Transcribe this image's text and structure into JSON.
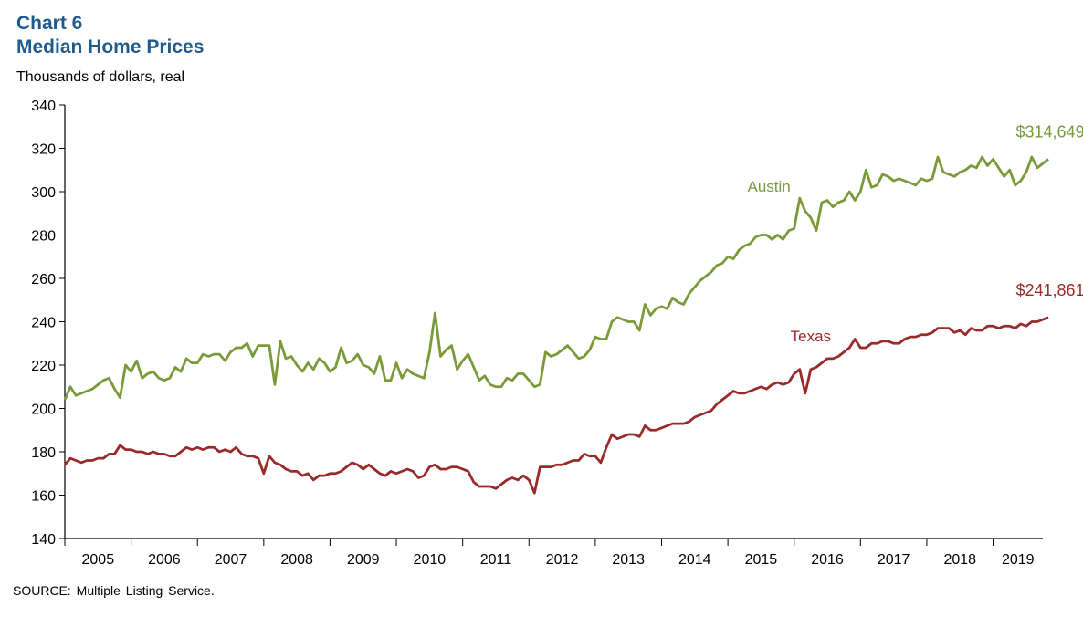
{
  "chart_data": {
    "type": "line",
    "chart_number": "Chart 6",
    "title": "Median Home Prices",
    "ylabel": "Thousands of dollars, real",
    "source": "SOURCE:  Multiple  Listing Service.",
    "ylim": [
      140,
      340
    ],
    "yticks": [
      140,
      160,
      180,
      200,
      220,
      240,
      260,
      280,
      300,
      320,
      340
    ],
    "xlim": [
      2005.0,
      2019.75
    ],
    "xticks": [
      "2005",
      "2006",
      "2007",
      "2008",
      "2009",
      "2010",
      "2011",
      "2012",
      "2013",
      "2014",
      "2015",
      "2016",
      "2017",
      "2018",
      "2019"
    ],
    "grid": false,
    "legend": "none (series labeled directly on chart)",
    "series": [
      {
        "name": "Austin",
        "color": "#7a9a3a",
        "end_label": "$314,649",
        "start": "2005-01",
        "frequency": "monthly",
        "values": [
          204,
          210,
          206,
          207,
          208,
          209,
          211,
          213,
          214,
          209,
          205,
          220,
          217,
          222,
          214,
          216,
          217,
          214,
          213,
          214,
          219,
          217,
          223,
          221,
          221,
          225,
          224,
          225,
          225,
          222,
          226,
          228,
          228,
          230,
          224,
          229,
          229,
          229,
          211,
          231,
          223,
          224,
          220,
          217,
          221,
          218,
          223,
          221,
          217,
          219,
          228,
          221,
          222,
          225,
          220,
          219,
          216,
          224,
          213,
          213,
          221,
          214,
          218,
          216,
          215,
          214,
          226,
          244,
          224,
          227,
          229,
          218,
          222,
          225,
          219,
          213,
          215,
          211,
          210,
          210,
          214,
          213,
          216,
          216,
          213,
          210,
          211,
          226,
          224,
          225,
          227,
          229,
          226,
          223,
          224,
          227,
          233,
          232,
          232,
          240,
          242,
          241,
          240,
          240,
          236,
          248,
          243,
          246,
          247,
          246,
          251,
          249,
          248,
          253,
          256,
          259,
          261,
          263,
          266,
          267,
          270,
          269,
          273,
          275,
          276,
          279,
          280,
          280,
          278,
          280,
          278,
          282,
          283,
          297,
          291,
          288,
          282,
          295,
          296,
          293,
          295,
          296,
          300,
          296,
          300,
          310,
          302,
          303,
          308,
          307,
          305,
          306,
          305,
          304,
          303,
          306,
          305,
          306,
          316,
          309,
          308,
          307,
          309,
          310,
          312,
          311,
          316,
          312,
          315,
          311,
          307,
          310,
          303,
          305,
          309,
          316,
          311,
          313,
          315
        ]
      },
      {
        "name": "Texas",
        "color": "#9a2a2a",
        "end_label": "$241,861",
        "start": "2005-01",
        "frequency": "monthly",
        "values": [
          174,
          177,
          176,
          175,
          176,
          176,
          177,
          177,
          179,
          179,
          183,
          181,
          181,
          180,
          180,
          179,
          180,
          179,
          179,
          178,
          178,
          180,
          182,
          181,
          182,
          181,
          182,
          182,
          180,
          181,
          180,
          182,
          179,
          178,
          178,
          177,
          170,
          178,
          175,
          174,
          172,
          171,
          171,
          169,
          170,
          167,
          169,
          169,
          170,
          170,
          171,
          173,
          175,
          174,
          172,
          174,
          172,
          170,
          169,
          171,
          170,
          171,
          172,
          171,
          168,
          169,
          173,
          174,
          172,
          172,
          173,
          173,
          172,
          171,
          166,
          164,
          164,
          164,
          163,
          165,
          167,
          168,
          167,
          169,
          167,
          161,
          173,
          173,
          173,
          174,
          174,
          175,
          176,
          176,
          179,
          178,
          178,
          175,
          182,
          188,
          186,
          187,
          188,
          188,
          187,
          192,
          190,
          190,
          191,
          192,
          193,
          193,
          193,
          194,
          196,
          197,
          198,
          199,
          202,
          204,
          206,
          208,
          207,
          207,
          208,
          209,
          210,
          209,
          211,
          212,
          211,
          212,
          216,
          218,
          207,
          218,
          219,
          221,
          223,
          223,
          224,
          226,
          228,
          232,
          228,
          228,
          230,
          230,
          231,
          231,
          230,
          230,
          232,
          233,
          233,
          234,
          234,
          235,
          237,
          237,
          237,
          235,
          236,
          234,
          237,
          236,
          236,
          238,
          238,
          237,
          238,
          238,
          237,
          239,
          238,
          240,
          240,
          241,
          242
        ]
      }
    ]
  }
}
